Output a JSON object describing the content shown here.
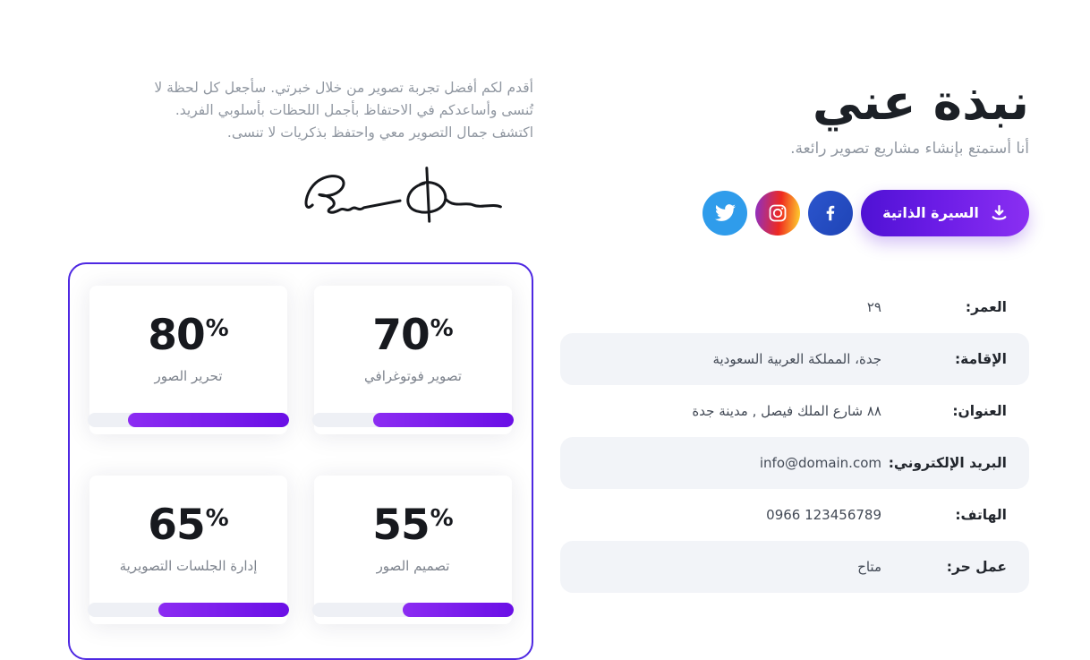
{
  "about": {
    "title": "نبذة عني",
    "subtitle": "أنا أستمتع بإنشاء مشاريع تصوير رائعة.",
    "cv_button_label": "السيرة الذاتية",
    "social_icons": [
      "facebook-icon",
      "instagram-icon",
      "twitter-icon"
    ],
    "info_rows": [
      {
        "label": "العمر:",
        "value": "٢٩"
      },
      {
        "label": "الإقامة:",
        "value": "جدة، المملكة العربية السعودية"
      },
      {
        "label": "العنوان:",
        "value": "٨٨ شارع الملك فيصل , مدينة جدة"
      },
      {
        "label": "البريد الإلكتروني:",
        "value": "info@domain.com"
      },
      {
        "label": "الهاتف:",
        "value": "0966 123456789"
      },
      {
        "label": "عمل حر:",
        "value": "متاح"
      }
    ]
  },
  "intro": {
    "paragraph": "أقدم لكم أفضل تجربة تصوير من خلال خبرتي. سأجعل كل لحظة لا تُنسى وأساعدكم في الاحتفاظ بأجمل اللحظات بأسلوبي الفريد. اكتشف جمال التصوير معي واحتفظ بذكريات لا تنسى.",
    "signature_icon": "signature"
  },
  "skills": {
    "percent_sign": "%",
    "items": [
      {
        "label": "تصوير فوتوغرافي",
        "percent": 70
      },
      {
        "label": "تحرير الصور",
        "percent": 80
      },
      {
        "label": "تصميم الصور",
        "percent": 55
      },
      {
        "label": "إدارة الجلسات التصويرية",
        "percent": 65
      }
    ]
  },
  "colors": {
    "accent_purple": "#6a1ce6",
    "card_border": "#4e28e2",
    "twitter_blue": "#2f9ceb",
    "facebook_blue": "#2550c5",
    "row_alt_bg": "#f2f4f8",
    "text_dark": "#1c2026",
    "text_gray": "#9097a1"
  }
}
